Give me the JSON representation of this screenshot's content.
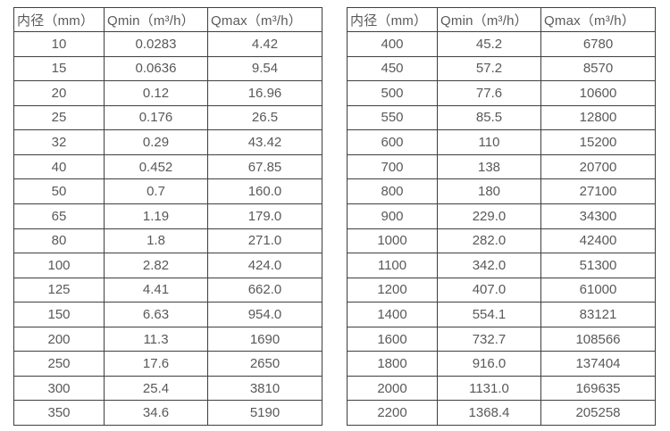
{
  "page": {
    "background": "#ffffff",
    "border_color": "#3f3f3f",
    "text_color": "#595959"
  },
  "tables": [
    {
      "name": "flow-table-left",
      "headers": [
        "内径（mm）",
        "Qmin（m³/h）",
        "Qmax（m³/h）"
      ],
      "rows": [
        [
          "10",
          "0.0283",
          "4.42"
        ],
        [
          "15",
          "0.0636",
          "9.54"
        ],
        [
          "20",
          "0.12",
          "16.96"
        ],
        [
          "25",
          "0.176",
          "26.5"
        ],
        [
          "32",
          "0.29",
          "43.42"
        ],
        [
          "40",
          "0.452",
          "67.85"
        ],
        [
          "50",
          "0.7",
          "160.0"
        ],
        [
          "65",
          "1.19",
          "179.0"
        ],
        [
          "80",
          "1.8",
          "271.0"
        ],
        [
          "100",
          "2.82",
          "424.0"
        ],
        [
          "125",
          "4.41",
          "662.0"
        ],
        [
          "150",
          "6.63",
          "954.0"
        ],
        [
          "200",
          "11.3",
          "1690"
        ],
        [
          "250",
          "17.6",
          "2650"
        ],
        [
          "300",
          "25.4",
          "3810"
        ],
        [
          "350",
          "34.6",
          "5190"
        ]
      ]
    },
    {
      "name": "flow-table-right",
      "headers": [
        "内径（mm）",
        "Qmin（m³/h）",
        "Qmax（m³/h）"
      ],
      "rows": [
        [
          "400",
          "45.2",
          "6780"
        ],
        [
          "450",
          "57.2",
          "8570"
        ],
        [
          "500",
          "77.6",
          "10600"
        ],
        [
          "550",
          "85.5",
          "12800"
        ],
        [
          "600",
          "110",
          "15200"
        ],
        [
          "700",
          "138",
          "20700"
        ],
        [
          "800",
          "180",
          "27100"
        ],
        [
          "900",
          "229.0",
          "34300"
        ],
        [
          "1000",
          "282.0",
          "42400"
        ],
        [
          "1100",
          "342.0",
          "51300"
        ],
        [
          "1200",
          "407.0",
          "61000"
        ],
        [
          "1400",
          "554.1",
          "83121"
        ],
        [
          "1600",
          "732.7",
          "108566"
        ],
        [
          "1800",
          "916.0",
          "137404"
        ],
        [
          "2000",
          "1131.0",
          "169635"
        ],
        [
          "2200",
          "1368.4",
          "205258"
        ]
      ]
    }
  ]
}
